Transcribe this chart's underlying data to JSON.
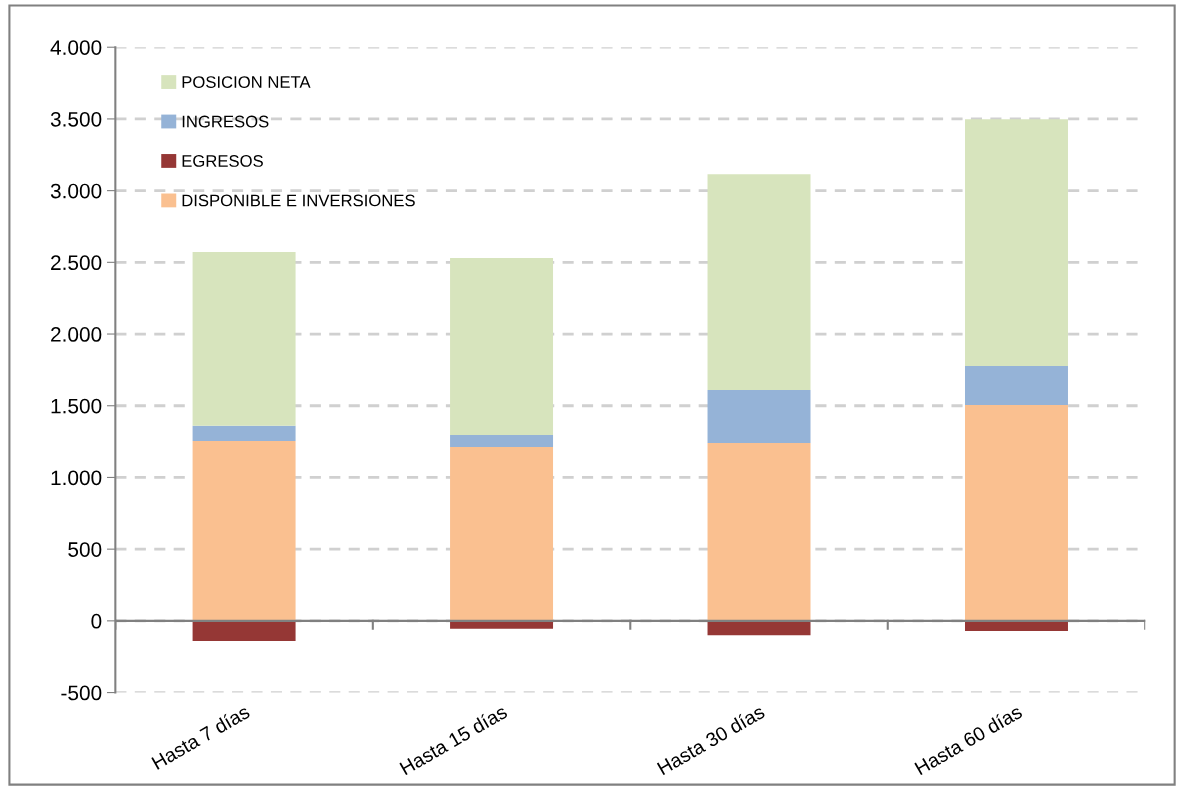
{
  "chart_data": {
    "type": "bar",
    "stacked": true,
    "categories": [
      "Hasta 7 días",
      "Hasta 15 días",
      "Hasta 30 días",
      "Hasta 60 días"
    ],
    "series": [
      {
        "name": "DISPONIBLE E INVERSIONES",
        "color": "#fac090",
        "values": [
          1255,
          1213,
          1240,
          1505
        ]
      },
      {
        "name": "EGRESOS",
        "color": "#953735",
        "values": [
          -140,
          -55,
          -100,
          -70
        ]
      },
      {
        "name": "INGRESOS",
        "color": "#95b3d7",
        "values": [
          105,
          83,
          370,
          272
        ]
      },
      {
        "name": "POSICION NETA",
        "color": "#d7e4bd",
        "values": [
          1212,
          1234,
          1505,
          1721
        ]
      }
    ],
    "ylim": [
      -500,
      4000
    ],
    "yticks": [
      {
        "value": -500,
        "label": "-500"
      },
      {
        "value": 0,
        "label": "0"
      },
      {
        "value": 500,
        "label": "500"
      },
      {
        "value": 1000,
        "label": "1.000"
      },
      {
        "value": 1500,
        "label": "1.500"
      },
      {
        "value": 2000,
        "label": "2.000"
      },
      {
        "value": 2500,
        "label": "2.500"
      },
      {
        "value": 3000,
        "label": "3.000"
      },
      {
        "value": 3500,
        "label": "3.500"
      },
      {
        "value": 4000,
        "label": "4.000"
      }
    ],
    "grid": "y",
    "legend": "top left"
  }
}
